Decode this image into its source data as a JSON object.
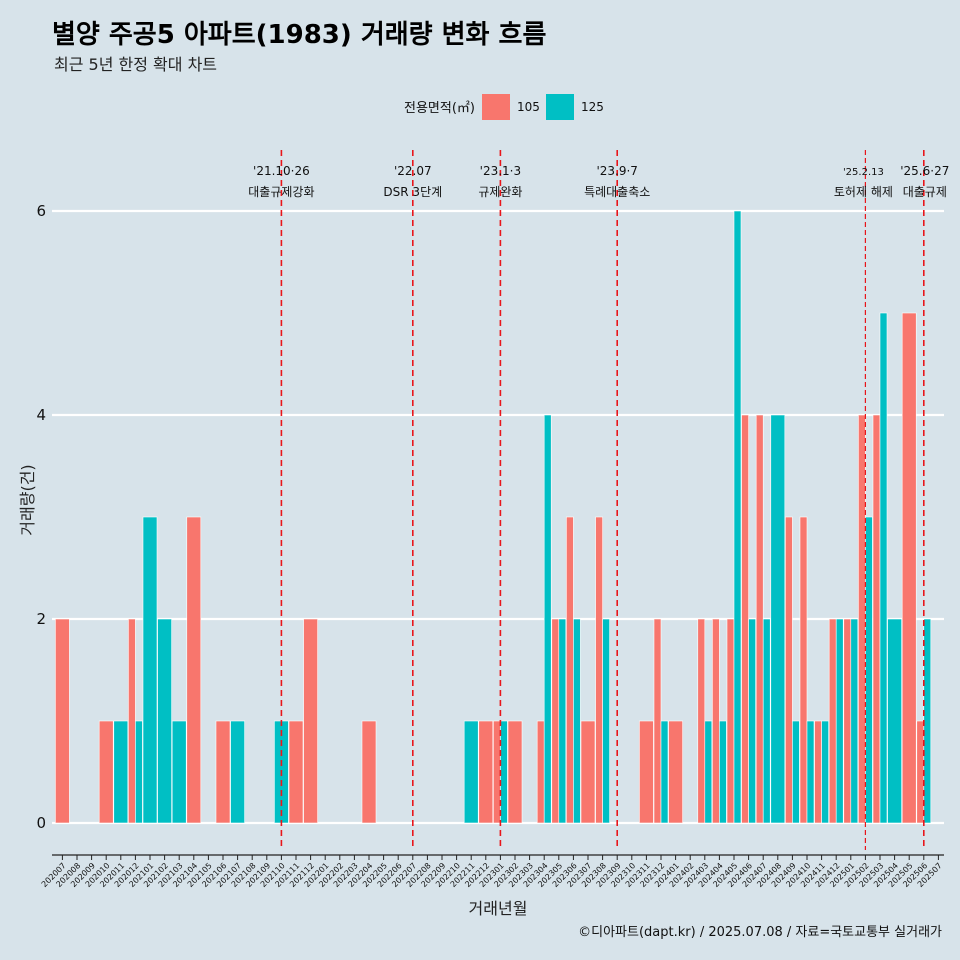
{
  "chart_data": {
    "type": "bar",
    "title": "별양 주공5 아파트(1983) 거래량 변화 흐름",
    "subtitle": "최근 5년 한정 확대 차트",
    "xlabel": "거래년월",
    "ylabel": "거래량(건)",
    "ylim": [
      -0.5,
      6.5
    ],
    "yticks": [
      0,
      2,
      4,
      6
    ],
    "legend_title": "전용면적(㎡)",
    "caption": "©디아파트(dapt.kr) / 2025.07.08 / 자료=국토교통부 실거래가",
    "categories": [
      "202007",
      "202008",
      "202009",
      "202010",
      "202011",
      "202012",
      "202101",
      "202102",
      "202103",
      "202104",
      "202105",
      "202106",
      "202107",
      "202108",
      "202109",
      "202110",
      "202111",
      "202112",
      "202201",
      "202202",
      "202203",
      "202204",
      "202205",
      "202206",
      "202207",
      "202208",
      "202209",
      "202210",
      "202211",
      "202212",
      "202301",
      "202302",
      "202303",
      "202304",
      "202305",
      "202306",
      "202307",
      "202308",
      "202309",
      "202310",
      "202311",
      "202312",
      "202401",
      "202402",
      "202403",
      "202404",
      "202405",
      "202406",
      "202407",
      "202408",
      "202409",
      "202410",
      "202411",
      "202412",
      "202501",
      "202502",
      "202503",
      "202504",
      "202505",
      "202506",
      "202507"
    ],
    "series": [
      {
        "name": "105",
        "color": "#f8766d",
        "values": [
          2,
          0,
          0,
          1,
          0,
          2,
          0,
          0,
          0,
          3,
          0,
          1,
          0,
          0,
          0,
          0,
          1,
          2,
          0,
          0,
          0,
          1,
          0,
          0,
          0,
          0,
          0,
          0,
          0,
          1,
          1,
          1,
          0,
          1,
          2,
          3,
          1,
          3,
          0,
          0,
          1,
          2,
          1,
          0,
          2,
          2,
          2,
          4,
          4,
          0,
          3,
          3,
          1,
          2,
          2,
          4,
          4,
          0,
          5,
          1,
          0
        ]
      },
      {
        "name": "125",
        "color": "#00bfc4",
        "values": [
          0,
          0,
          0,
          0,
          1,
          1,
          3,
          2,
          1,
          0,
          0,
          0,
          1,
          0,
          0,
          1,
          0,
          0,
          0,
          0,
          0,
          0,
          0,
          0,
          0,
          0,
          0,
          0,
          1,
          0,
          1,
          0,
          0,
          4,
          2,
          2,
          0,
          2,
          0,
          0,
          0,
          1,
          0,
          0,
          1,
          1,
          6,
          2,
          2,
          4,
          1,
          1,
          1,
          2,
          2,
          3,
          5,
          2,
          0,
          2,
          0
        ]
      }
    ],
    "annotations": [
      {
        "at": "202110",
        "date": "'21.10·26",
        "label": "대출규제강화",
        "small": false
      },
      {
        "at": "202207",
        "date": "'22.07",
        "label": "DSR 3단계",
        "small": false
      },
      {
        "at": "202301",
        "date": "'23.1·3",
        "label": "규제완화",
        "small": false
      },
      {
        "at": "202309",
        "date": "'23.9·7",
        "label": "특례대출축소",
        "small": false
      },
      {
        "at": "202502",
        "date": "'25.2.13",
        "label": "토허제 해제",
        "small": true
      },
      {
        "at": "202506",
        "date": "'25.6·27",
        "label": "대출규제",
        "small": false
      }
    ]
  }
}
